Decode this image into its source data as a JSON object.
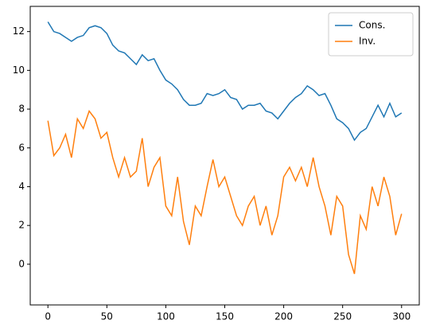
{
  "chart_data": {
    "type": "line",
    "x": [
      0,
      5,
      10,
      15,
      20,
      25,
      30,
      35,
      40,
      45,
      50,
      55,
      60,
      65,
      70,
      75,
      80,
      85,
      90,
      95,
      100,
      105,
      110,
      115,
      120,
      125,
      130,
      135,
      140,
      145,
      150,
      155,
      160,
      165,
      170,
      175,
      180,
      185,
      190,
      195,
      200,
      205,
      210,
      215,
      220,
      225,
      230,
      235,
      240,
      245,
      250,
      255,
      260,
      265,
      270,
      275,
      280,
      285,
      290,
      295,
      300
    ],
    "series": [
      {
        "name": "Cons.",
        "color": "#1f77b4",
        "values": [
          12.5,
          12.0,
          11.9,
          11.7,
          11.5,
          11.7,
          11.8,
          12.2,
          12.3,
          12.2,
          11.9,
          11.3,
          11.0,
          10.9,
          10.6,
          10.3,
          10.8,
          10.5,
          10.6,
          10.0,
          9.5,
          9.3,
          9.0,
          8.5,
          8.2,
          8.2,
          8.3,
          8.8,
          8.7,
          8.8,
          9.0,
          8.6,
          8.5,
          8.0,
          8.2,
          8.2,
          8.3,
          7.9,
          7.8,
          7.5,
          7.9,
          8.3,
          8.6,
          8.8,
          9.2,
          9.0,
          8.7,
          8.8,
          8.2,
          7.5,
          7.3,
          7.0,
          6.4,
          6.8,
          7.0,
          7.6,
          8.2,
          7.6,
          8.3,
          7.6,
          7.8
        ]
      },
      {
        "name": "Inv.",
        "color": "#ff7f0e",
        "values": [
          7.4,
          5.6,
          6.0,
          6.7,
          5.5,
          7.5,
          7.0,
          7.9,
          7.5,
          6.5,
          6.8,
          5.5,
          4.5,
          5.5,
          4.5,
          4.8,
          6.5,
          4.0,
          5.0,
          5.5,
          3.0,
          2.5,
          4.5,
          2.2,
          1.0,
          3.0,
          2.5,
          4.0,
          5.4,
          4.0,
          4.5,
          3.5,
          2.5,
          2.0,
          3.0,
          3.5,
          2.0,
          3.0,
          1.5,
          2.5,
          4.5,
          5.0,
          4.3,
          5.0,
          4.0,
          5.5,
          4.0,
          3.0,
          1.5,
          3.5,
          3.0,
          0.5,
          -0.5,
          2.5,
          1.8,
          4.0,
          3.0,
          4.5,
          3.5,
          1.5,
          2.6
        ]
      }
    ],
    "xlim": [
      -15,
      315
    ],
    "ylim": [
      -2.1,
      13.3
    ],
    "xticks": [
      0,
      50,
      100,
      150,
      200,
      250,
      300
    ],
    "yticks": [
      0,
      2,
      4,
      6,
      8,
      10,
      12
    ],
    "legend": "upper right"
  }
}
